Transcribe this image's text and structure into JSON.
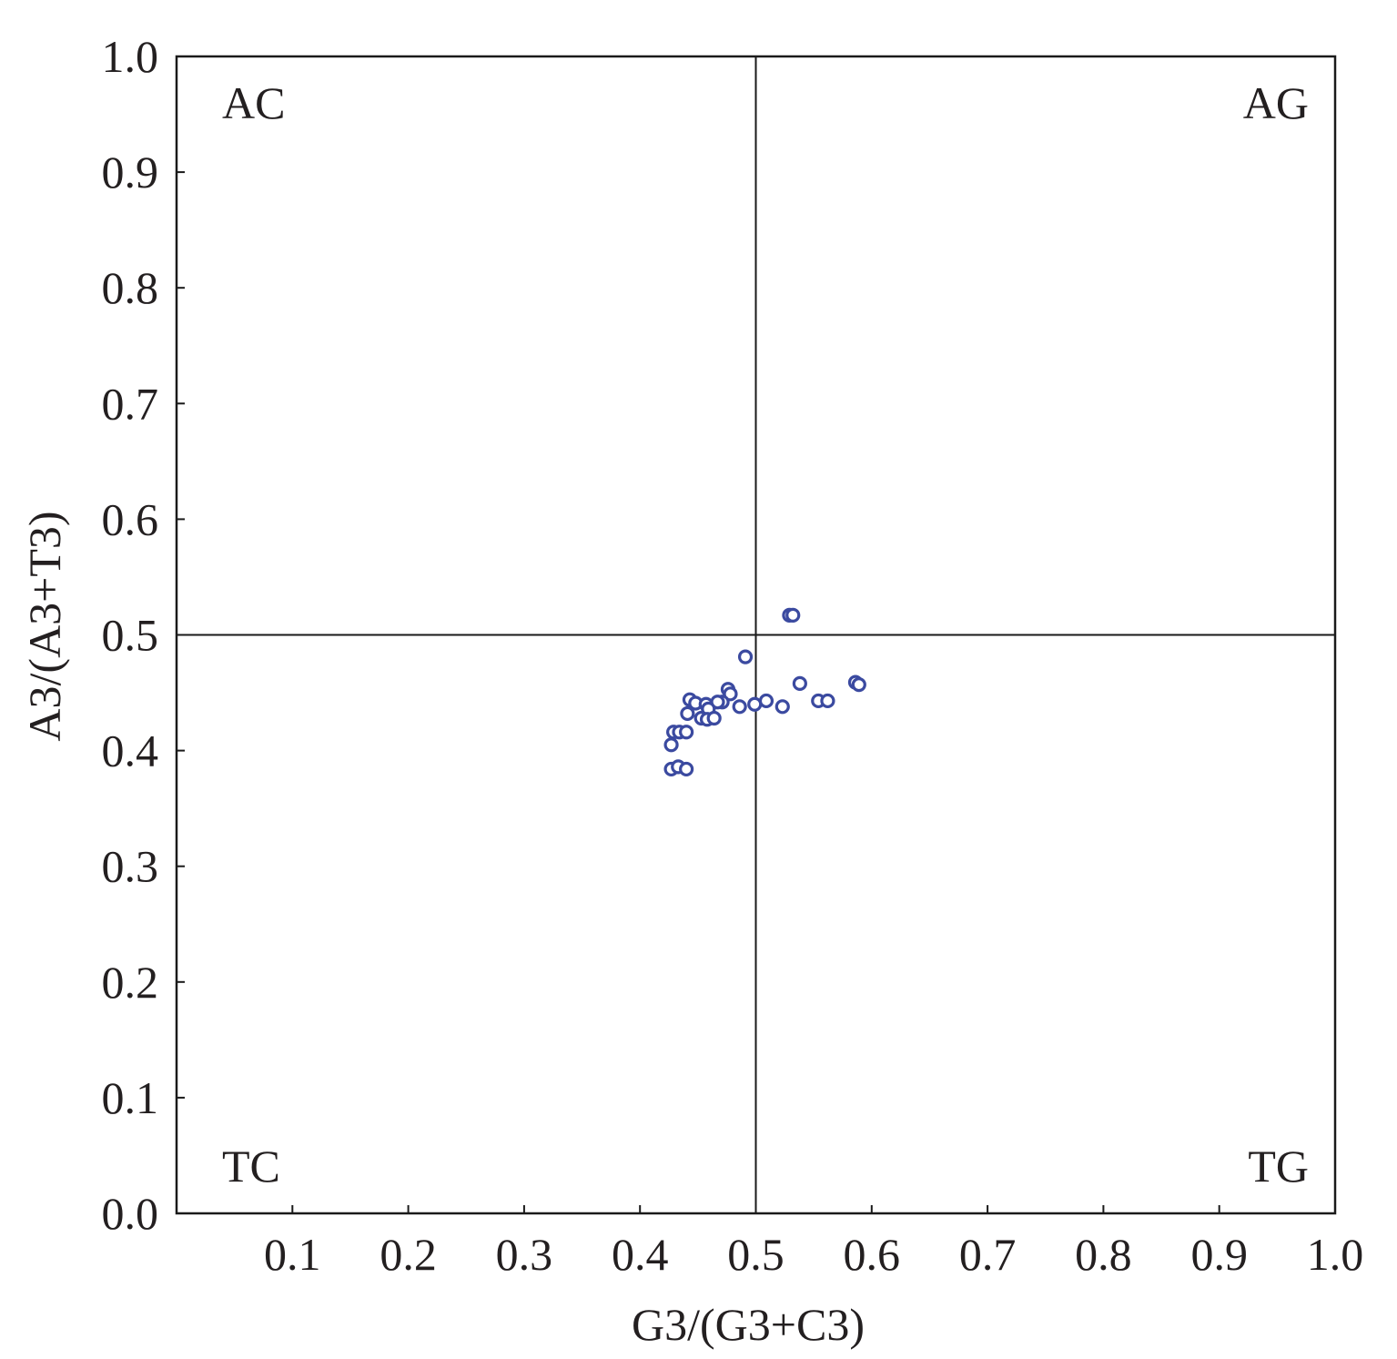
{
  "chart_data": {
    "type": "scatter",
    "xlabel": "G3/(G3+C3)",
    "ylabel": "A3/(A3+T3)",
    "xlim": [
      0,
      1.0
    ],
    "ylim": [
      0,
      1.0
    ],
    "xticks": [
      "0.1",
      "0.2",
      "0.3",
      "0.4",
      "0.5",
      "0.6",
      "0.7",
      "0.8",
      "0.9",
      "1.0"
    ],
    "yticks": [
      "0.0",
      "0.1",
      "0.2",
      "0.3",
      "0.4",
      "0.5",
      "0.6",
      "0.7",
      "0.8",
      "0.9",
      "1.0"
    ],
    "reference_lines": {
      "x": 0.5,
      "y": 0.5
    },
    "quadrant_labels": {
      "top_left": "AC",
      "top_right": "AG",
      "bottom_left": "TC",
      "bottom_right": "TG"
    },
    "grid": false,
    "marker_color": "#3b4aa0",
    "points": [
      {
        "x": 0.529,
        "y": 0.517
      },
      {
        "x": 0.532,
        "y": 0.517
      },
      {
        "x": 0.491,
        "y": 0.481
      },
      {
        "x": 0.538,
        "y": 0.458
      },
      {
        "x": 0.586,
        "y": 0.459
      },
      {
        "x": 0.589,
        "y": 0.457
      },
      {
        "x": 0.476,
        "y": 0.453
      },
      {
        "x": 0.478,
        "y": 0.449
      },
      {
        "x": 0.471,
        "y": 0.442
      },
      {
        "x": 0.467,
        "y": 0.442
      },
      {
        "x": 0.486,
        "y": 0.438
      },
      {
        "x": 0.499,
        "y": 0.44
      },
      {
        "x": 0.509,
        "y": 0.443
      },
      {
        "x": 0.523,
        "y": 0.438
      },
      {
        "x": 0.554,
        "y": 0.443
      },
      {
        "x": 0.562,
        "y": 0.443
      },
      {
        "x": 0.443,
        "y": 0.444
      },
      {
        "x": 0.448,
        "y": 0.441
      },
      {
        "x": 0.457,
        "y": 0.44
      },
      {
        "x": 0.459,
        "y": 0.436
      },
      {
        "x": 0.441,
        "y": 0.432
      },
      {
        "x": 0.453,
        "y": 0.428
      },
      {
        "x": 0.458,
        "y": 0.427
      },
      {
        "x": 0.464,
        "y": 0.428
      },
      {
        "x": 0.429,
        "y": 0.416
      },
      {
        "x": 0.434,
        "y": 0.416
      },
      {
        "x": 0.44,
        "y": 0.416
      },
      {
        "x": 0.427,
        "y": 0.405
      },
      {
        "x": 0.427,
        "y": 0.384
      },
      {
        "x": 0.433,
        "y": 0.386
      },
      {
        "x": 0.44,
        "y": 0.384
      }
    ]
  }
}
